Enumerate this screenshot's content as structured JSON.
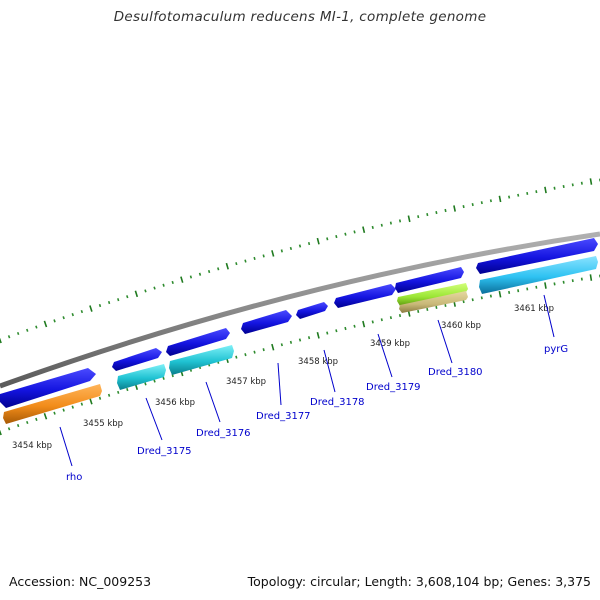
{
  "title": "Desulfotomaculum reducens MI-1, complete genome",
  "footer": {
    "accession": "Accession: NC_009253",
    "summary": "Topology: circular; Length: 3,608,104 bp; Genes: 3,375"
  },
  "colors": {
    "backbone": "#8a8a8a",
    "tick_major": "#1f7a1f",
    "tick_minor": "#2e8b2e",
    "gene_blue": "#1a1ae6",
    "gene_cyan": "#21c6d6",
    "gene_orange": "#f28c1a",
    "gene_sky": "#2ec2f2",
    "gene_green": "#9be635",
    "gene_khaki": "#c8b878",
    "label_blue": "#0000cc"
  },
  "kbp_ticks": [
    {
      "label": "3454 kbp"
    },
    {
      "label": "3455 kbp"
    },
    {
      "label": "3456 kbp"
    },
    {
      "label": "3457 kbp"
    },
    {
      "label": "3458 kbp"
    },
    {
      "label": "3459 kbp"
    },
    {
      "label": "3460 kbp"
    },
    {
      "label": "3461 kbp"
    }
  ],
  "genes": [
    {
      "label": "rho"
    },
    {
      "label": "Dred_3175"
    },
    {
      "label": "Dred_3176"
    },
    {
      "label": "Dred_3177"
    },
    {
      "label": "Dred_3178"
    },
    {
      "label": "Dred_3179"
    },
    {
      "label": "Dred_3180"
    },
    {
      "label": "pyrG"
    }
  ]
}
